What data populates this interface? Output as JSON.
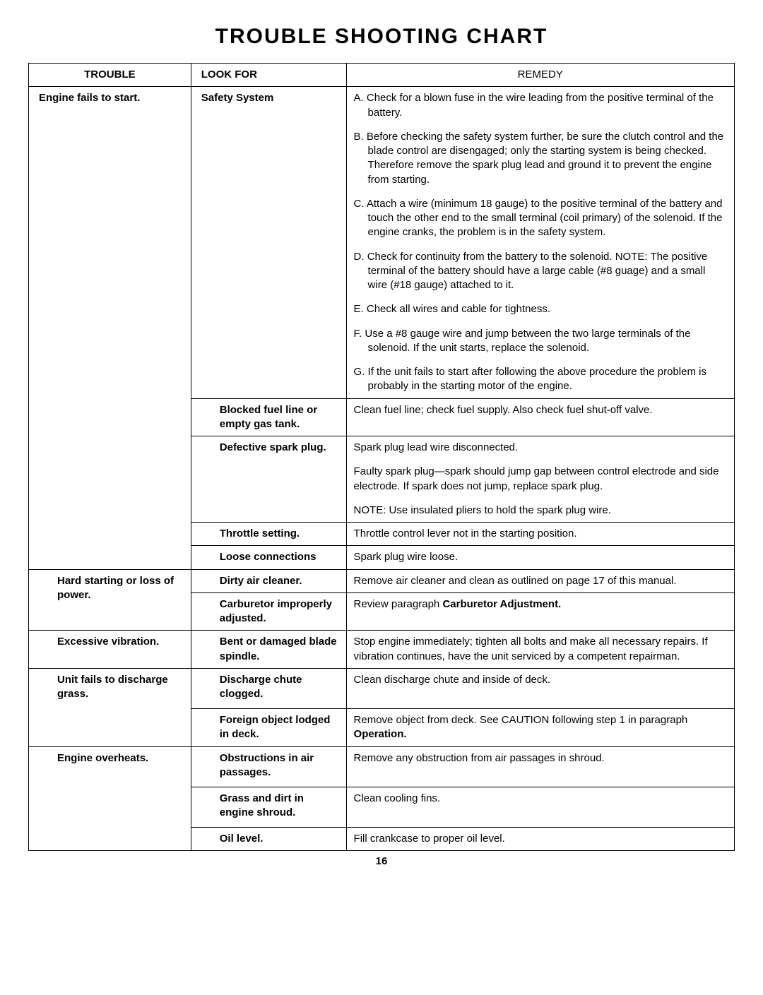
{
  "title": "TROUBLE SHOOTING CHART",
  "headers": {
    "c1": "TROUBLE",
    "c2": "LOOK FOR",
    "c3": "REMEDY"
  },
  "rows": [
    {
      "trouble": "Engine fails to start.",
      "lookfor": "Safety System",
      "remedies": [
        "A. Check for a blown fuse in the wire leading from the positive terminal of the battery.",
        "B. Before checking the safety system further, be sure the clutch control and the blade control are disengaged; only the starting system is being checked. Therefore remove the spark plug lead and ground it to prevent the engine from starting.",
        "C. Attach a wire (minimum 18 gauge) to the positive terminal of the battery and touch the other end to the small terminal (coil primary) of the solenoid. If the engine cranks, the problem is in the safety system.",
        "D. Check for continuity from the battery to the solenoid. NOTE: The positive terminal of the battery should have a large cable (#8 guage) and a small wire (#18 gauge) attached to it.",
        "E. Check all wires and cable for tightness.",
        "F. Use a #8 gauge wire and jump between the two large terminals of the solenoid. If the unit starts, replace the solenoid.",
        "G. If the unit fails to start after following the above procedure the problem is probably in the starting motor of the engine."
      ]
    },
    {
      "trouble": "",
      "lookfor": "Blocked fuel line or empty gas tank.",
      "remedies": [
        "Clean fuel line; check fuel supply. Also check fuel shut-off valve."
      ]
    },
    {
      "trouble": "",
      "lookfor": "Defective spark plug.",
      "remedies": [
        "Spark plug lead wire disconnected.",
        "Faulty spark plug—spark should jump gap between control electrode and side electrode. If spark does not jump, replace spark plug.",
        "NOTE: Use insulated pliers to hold the spark plug wire."
      ]
    },
    {
      "trouble": "",
      "lookfor": "Throttle setting.",
      "remedies": [
        "Throttle control lever not in the starting position."
      ]
    },
    {
      "trouble": "",
      "lookfor": "Loose connections",
      "remedies": [
        "Spark plug wire loose."
      ]
    },
    {
      "trouble": "Hard starting or loss of power.",
      "lookfor": "Dirty air cleaner.",
      "remedies": [
        "Remove air cleaner and clean as outlined on page 17 of this manual."
      ]
    },
    {
      "trouble": "",
      "lookfor": "Carburetor improperly adjusted.",
      "remedy_html": "Review paragraph <span class=\"b\">Carburetor Adjustment.</span>"
    },
    {
      "trouble": "Excessive vibration.",
      "lookfor": "Bent or damaged blade spindle.",
      "remedies": [
        "Stop engine immediately; tighten all bolts and make all necessary repairs. If vibration continues, have the unit serviced by a competent repairman."
      ]
    },
    {
      "trouble": "Unit fails to discharge grass.",
      "lookfor": "Discharge chute clogged.",
      "remedies": [
        "Clean discharge chute and inside of deck."
      ]
    },
    {
      "trouble": "",
      "lookfor": "Foreign object lodged in deck.",
      "remedy_html": "Remove object from deck. See CAUTION following step 1 in paragraph <span class=\"b\">Operation.</span>"
    },
    {
      "trouble": "Engine overheats.",
      "lookfor": "Obstructions in air passages.",
      "remedies": [
        "Remove any obstruction from air passages in shroud."
      ]
    },
    {
      "trouble": "",
      "lookfor": "Grass and dirt in engine shroud.",
      "remedies": [
        "Clean cooling fins."
      ]
    },
    {
      "trouble": "",
      "lookfor": "Oil level.",
      "remedies": [
        "Fill crankcase to proper oil level."
      ]
    }
  ],
  "page_number": "16",
  "layout": {
    "col_widths_pct": [
      23,
      22,
      55
    ],
    "font_size_pt": 15,
    "title_font_size_pt": 30,
    "border_color": "#000000",
    "background_color": "#ffffff",
    "text_color": "#000000"
  }
}
